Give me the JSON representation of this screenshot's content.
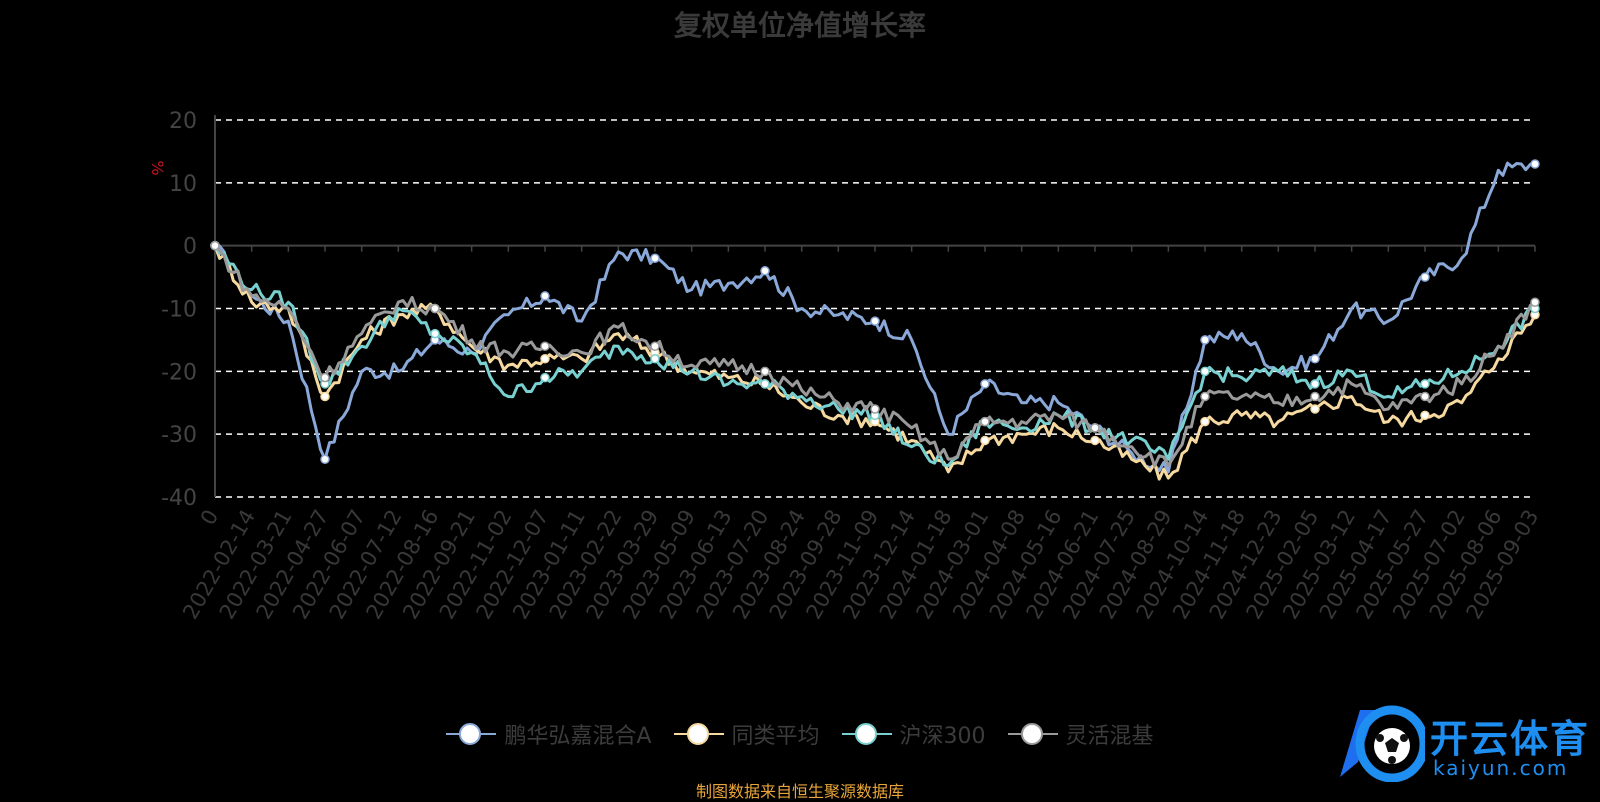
{
  "title": "复权单位净值增长率",
  "source_note": "制图数据来自恒生聚源数据库",
  "logo": {
    "cn": "开云体育",
    "en": "kaiyun.com"
  },
  "chart_data": {
    "type": "line",
    "ylabel": "%",
    "ylim": [
      -40,
      20
    ],
    "yticks": [
      20,
      10,
      0,
      -10,
      -20,
      -30,
      -40
    ],
    "grid": true,
    "legend_position": "bottom",
    "x": [
      "0",
      "2022-02-14",
      "2022-03-21",
      "2022-04-27",
      "2022-06-07",
      "2022-07-12",
      "2022-08-16",
      "2022-09-21",
      "2022-11-02",
      "2022-12-07",
      "2023-01-11",
      "2023-02-22",
      "2023-03-29",
      "2023-05-09",
      "2023-06-13",
      "2023-07-20",
      "2023-08-24",
      "2023-09-28",
      "2023-11-09",
      "2023-12-14",
      "2024-01-18",
      "2024-03-01",
      "2024-04-08",
      "2024-05-16",
      "2024-06-21",
      "2024-07-25",
      "2024-08-29",
      "2024-10-14",
      "2024-11-18",
      "2024-12-23",
      "2025-02-05",
      "2025-03-12",
      "2025-04-17",
      "2025-05-27",
      "2025-07-02",
      "2025-08-06",
      "2025-09-03"
    ],
    "series": [
      {
        "name": "鹏华弘嘉混合A",
        "color": "#8aa8d8",
        "values": [
          0,
          -8,
          -12,
          -34,
          -20,
          -20,
          -15,
          -17,
          -11,
          -8,
          -12,
          -1,
          -2,
          -7,
          -6,
          -4,
          -10,
          -11,
          -12,
          -15,
          -30,
          -22,
          -25,
          -25,
          -29,
          -33,
          -36,
          -15,
          -14,
          -20,
          -18,
          -10,
          -12,
          -5,
          -2,
          12,
          13
        ]
      },
      {
        "name": "同类平均",
        "color": "#f5d9a0",
        "values": [
          0,
          -9,
          -10,
          -24,
          -15,
          -11,
          -10,
          -16,
          -19,
          -18,
          -18,
          -14,
          -17,
          -20,
          -21,
          -22,
          -25,
          -27,
          -28,
          -31,
          -36,
          -31,
          -30,
          -29,
          -31,
          -34,
          -37,
          -28,
          -27,
          -28,
          -26,
          -24,
          -28,
          -27,
          -25,
          -18,
          -11
        ]
      },
      {
        "name": "沪深300",
        "color": "#78d0d0",
        "values": [
          0,
          -7,
          -9,
          -22,
          -16,
          -10,
          -14,
          -17,
          -24,
          -21,
          -20,
          -16,
          -18,
          -20,
          -22,
          -22,
          -24,
          -26,
          -27,
          -32,
          -35,
          -28,
          -29,
          -27,
          -29,
          -31,
          -34,
          -20,
          -21,
          -20,
          -22,
          -20,
          -24,
          -22,
          -20,
          -16,
          -10
        ]
      },
      {
        "name": "灵活混基",
        "color": "#9a9a9a",
        "values": [
          0,
          -8,
          -10,
          -21,
          -14,
          -9,
          -10,
          -15,
          -17,
          -16,
          -17,
          -13,
          -16,
          -19,
          -19,
          -20,
          -23,
          -25,
          -26,
          -29,
          -34,
          -28,
          -28,
          -27,
          -29,
          -32,
          -35,
          -24,
          -24,
          -25,
          -24,
          -22,
          -26,
          -24,
          -22,
          -16,
          -9
        ]
      }
    ]
  }
}
